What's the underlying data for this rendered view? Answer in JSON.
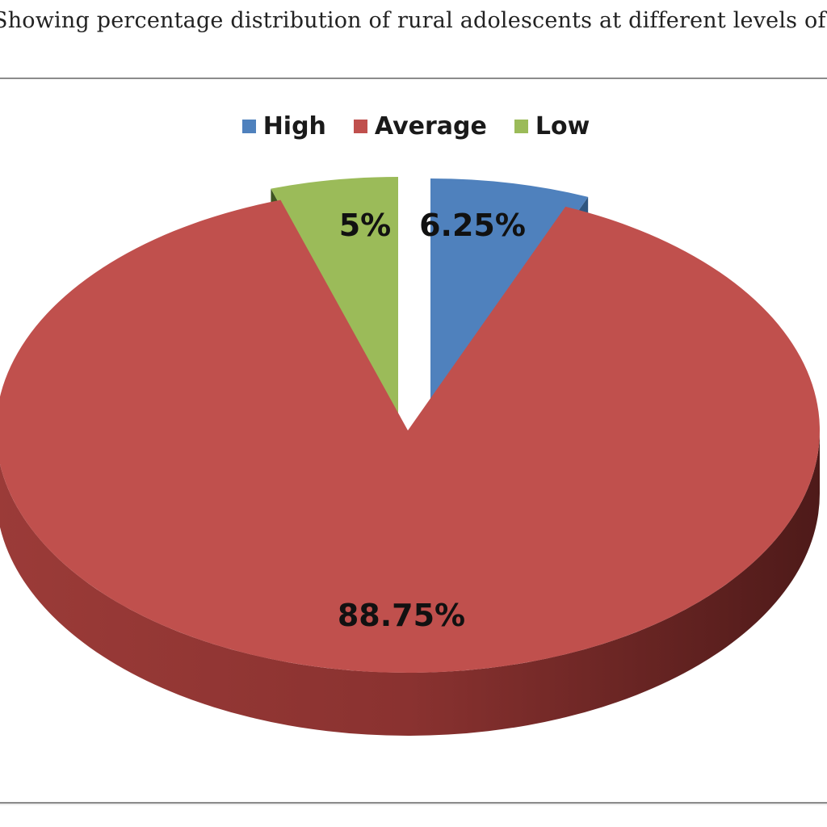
{
  "caption": "Showing percentage distribution of rural adolescents at different levels of we",
  "chart_data": {
    "type": "pie",
    "title": "",
    "categories": [
      "High",
      "Average",
      "Low"
    ],
    "values": [
      6.25,
      88.75,
      5
    ],
    "labels": [
      "6.25%",
      "88.75%",
      "5%"
    ],
    "colors": [
      "#4f81bd",
      "#c0504d",
      "#9bbb59"
    ],
    "legend_position": "top",
    "style": "3d-exploded"
  }
}
